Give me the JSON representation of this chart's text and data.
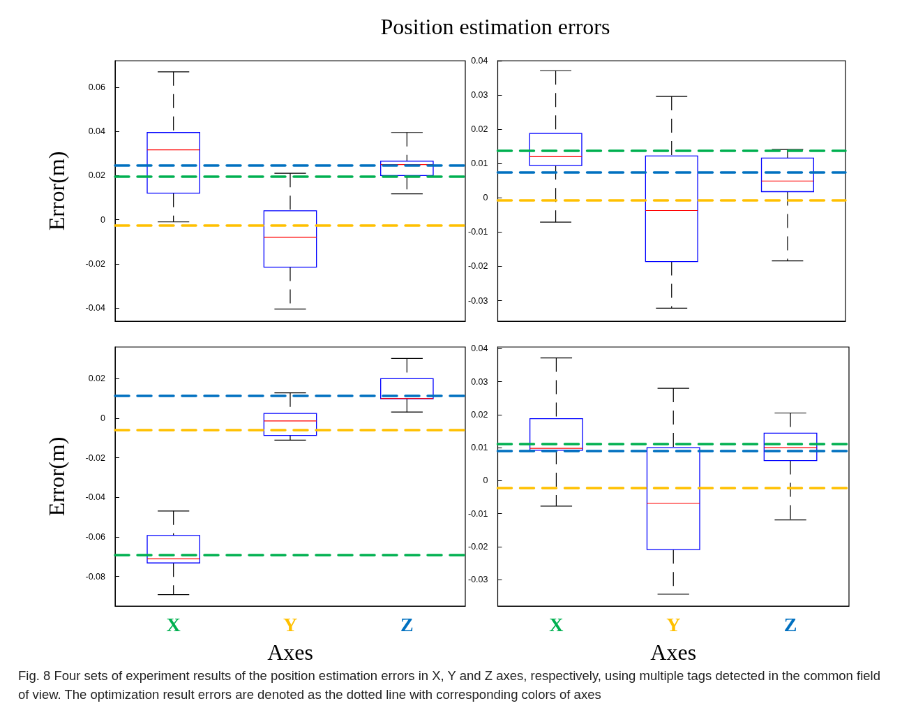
{
  "chart_data": [
    {
      "type": "box",
      "title": "Position estimation errors",
      "ylabel": "Error(m)",
      "categories": [
        null,
        null,
        null
      ],
      "tick_labels": "y",
      "grid": false,
      "line_style": "dashed",
      "ylim": [
        -0.046,
        0.072
      ],
      "yticks": [
        -0.04,
        -0.02,
        0,
        0.02,
        0.04,
        0.06
      ],
      "series": [
        {
          "color": "#0000ff",
          "boxes": [
            {
              "low": -0.001,
              "q1": 0.012,
              "median": 0.0316,
              "q3": 0.0395,
              "high": 0.067
            },
            {
              "low": -0.0405,
              "q1": -0.0215,
              "median": -0.008,
              "q3": 0.004,
              "high": 0.021
            },
            {
              "low": 0.0117,
              "q1": 0.02,
              "median": 0.025,
              "q3": 0.0265,
              "high": 0.0395
            }
          ]
        }
      ],
      "ref_lines": [
        {
          "axis": "y",
          "value": 0.0197,
          "color": "#00b050",
          "line_style": "dashed"
        },
        {
          "axis": "y",
          "value": -0.0025,
          "color": "#ffc000",
          "line_style": "dashed"
        },
        {
          "axis": "y",
          "value": 0.0245,
          "color": "#0070c0",
          "line_style": "dashed"
        }
      ]
    },
    {
      "type": "box",
      "categories": [
        null,
        null,
        null
      ],
      "tick_labels": "y",
      "grid": false,
      "line_style": "dashed",
      "ylim": [
        -0.036,
        0.04
      ],
      "yticks": [
        -0.03,
        -0.02,
        -0.01,
        0,
        0.01,
        0.02,
        0.03,
        0.04
      ],
      "series": [
        {
          "color": "#0000ff",
          "boxes": [
            {
              "low": -0.0071,
              "q1": 0.0094,
              "median": 0.012,
              "q3": 0.0188,
              "high": 0.0371
            },
            {
              "low": -0.0322,
              "q1": -0.0186,
              "median": -0.0037,
              "q3": 0.0122,
              "high": 0.0296
            },
            {
              "low": -0.0184,
              "q1": 0.0018,
              "median": 0.0049,
              "q3": 0.0116,
              "high": 0.0141
            }
          ]
        }
      ],
      "ref_lines": [
        {
          "axis": "y",
          "value": 0.0137,
          "color": "#00b050",
          "line_style": "dashed"
        },
        {
          "axis": "y",
          "value": -0.0006,
          "color": "#ffc000",
          "line_style": "dashed"
        },
        {
          "axis": "y",
          "value": 0.0075,
          "color": "#0070c0",
          "line_style": "dashed"
        }
      ]
    },
    {
      "type": "box",
      "ylabel": "Error(m)",
      "xlabel": "Axes",
      "categories": [
        "X",
        "Y",
        "Z"
      ],
      "grid": false,
      "line_style": "dashed",
      "ylim": [
        -0.095,
        0.036
      ],
      "yticks": [
        -0.08,
        -0.06,
        -0.04,
        -0.02,
        0,
        0.02
      ],
      "series": [
        {
          "color": "#0000ff",
          "boxes": [
            {
              "low": -0.0892,
              "q1": -0.0732,
              "median": -0.0711,
              "q3": -0.0593,
              "high": -0.0469
            },
            {
              "low": -0.0111,
              "q1": -0.0087,
              "median": -0.0014,
              "q3": 0.0024,
              "high": 0.0128
            },
            {
              "low": 0.0031,
              "q1": 0.0098,
              "median": 0.01,
              "q3": 0.02,
              "high": 0.0302
            }
          ]
        }
      ],
      "ref_lines": [
        {
          "axis": "y",
          "value": -0.069,
          "color": "#00b050",
          "line_style": "dashed"
        },
        {
          "axis": "y",
          "value": -0.0059,
          "color": "#ffc000",
          "line_style": "dashed"
        },
        {
          "axis": "y",
          "value": 0.0114,
          "color": "#0070c0",
          "line_style": "dashed"
        }
      ]
    },
    {
      "type": "box",
      "xlabel": "Axes",
      "categories": [
        "X",
        "Y",
        "Z"
      ],
      "grid": false,
      "line_style": "dashed",
      "ylim": [
        -0.038,
        0.0405
      ],
      "yticks": [
        -0.03,
        -0.02,
        -0.01,
        0,
        0.01,
        0.02,
        0.03,
        0.04
      ],
      "series": [
        {
          "color": "#0000ff",
          "boxes": [
            {
              "low": -0.0077,
              "q1": 0.0092,
              "median": 0.0098,
              "q3": 0.0188,
              "high": 0.0372
            },
            {
              "low": -0.0344,
              "q1": -0.0209,
              "median": -0.0069,
              "q3": 0.01,
              "high": 0.028
            },
            {
              "low": -0.0119,
              "q1": 0.0061,
              "median": 0.01,
              "q3": 0.0144,
              "high": 0.0205
            }
          ]
        }
      ],
      "ref_lines": [
        {
          "axis": "y",
          "value": 0.0111,
          "color": "#00b050",
          "line_style": "dashed"
        },
        {
          "axis": "y",
          "value": -0.0021,
          "color": "#ffc000",
          "line_style": "dashed"
        },
        {
          "axis": "y",
          "value": 0.009,
          "color": "#0070c0",
          "line_style": "dashed"
        }
      ],
      "annotations": [
        "Fig. 8  Four sets of experiment results of the position estimation errors in X, Y and Z axes, respectively, using multiple tags detected in the common field of view. The optimization result errors are denoted as the dotted line with corresponding colors of axes"
      ]
    }
  ]
}
